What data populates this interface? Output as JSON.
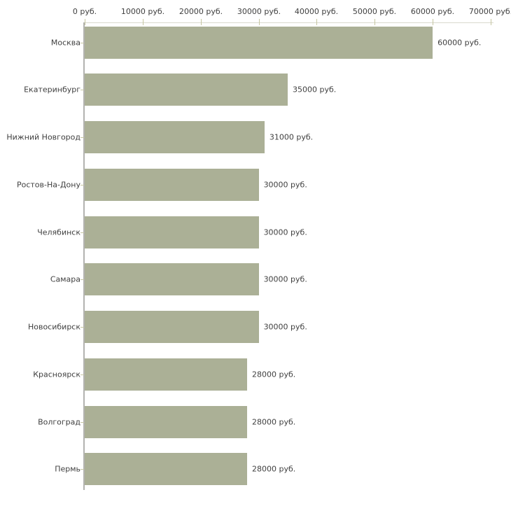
{
  "chart_data": {
    "type": "bar",
    "orientation": "horizontal",
    "title": "",
    "categories": [
      "Москва",
      "Екатеринбург",
      "Нижний Новгород",
      "Ростов-На-Дону",
      "Челябинск",
      "Самара",
      "Новосибирск",
      "Красноярск",
      "Волгоград",
      "Пермь"
    ],
    "values": [
      60000,
      35000,
      31000,
      30000,
      30000,
      30000,
      30000,
      28000,
      28000,
      28000
    ],
    "value_labels": [
      "60000 руб.",
      "35000 руб.",
      "31000 руб.",
      "30000 руб.",
      "30000 руб.",
      "30000 руб.",
      "30000 руб.",
      "28000 руб.",
      "28000 руб.",
      "28000 руб."
    ],
    "x_axis": {
      "position": "top",
      "min": 0,
      "max": 70000,
      "tick_step": 10000,
      "tick_labels": [
        "0 руб.",
        "10000 руб.",
        "20000 руб.",
        "30000 руб.",
        "40000 руб.",
        "50000 руб.",
        "60000 руб.",
        "70000 руб."
      ]
    },
    "grid": false,
    "legend": null,
    "colors": {
      "bar": "#abb096",
      "axis_line": "#d9d9cd",
      "tick_mark": "#c6c6a2",
      "category_axis_line": "#b3b3b0",
      "text": "#3f3f3f",
      "background": "#ffffff"
    }
  }
}
